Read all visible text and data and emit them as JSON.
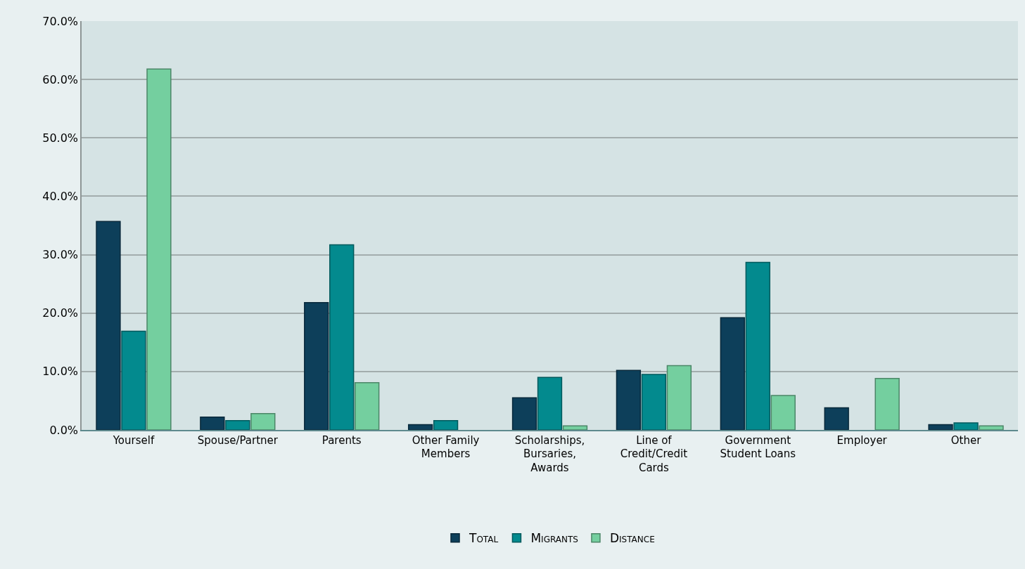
{
  "chart_data": {
    "type": "bar",
    "categories": [
      "Yourself",
      "Spouse/Partner",
      "Parents",
      "Other Family Members",
      "Scholarships, Bursaries, Awards",
      "Line of Credit/Credit Cards",
      "Government Student Loans",
      "Employer",
      "Other"
    ],
    "series": [
      {
        "name": "Total",
        "color": "#0d3f5a",
        "values": [
          35.7,
          2.2,
          21.8,
          0.9,
          5.5,
          10.2,
          19.2,
          3.8,
          0.9
        ]
      },
      {
        "name": "Migrants",
        "color": "#038a8e",
        "values": [
          16.9,
          1.6,
          31.7,
          1.6,
          9.0,
          9.5,
          28.7,
          null,
          1.2
        ]
      },
      {
        "name": "Distance",
        "color": "#74cf9f",
        "values": [
          61.8,
          2.8,
          8.1,
          null,
          0.7,
          11.0,
          5.9,
          8.8,
          0.7
        ]
      }
    ],
    "ylim": [
      0,
      70
    ],
    "yticks": [
      {
        "value": 0,
        "label": "0.0%"
      },
      {
        "value": 10,
        "label": "10.0%"
      },
      {
        "value": 20,
        "label": "20.0%"
      },
      {
        "value": 30,
        "label": "30.0%"
      },
      {
        "value": 40,
        "label": "40.0%"
      },
      {
        "value": 50,
        "label": "50.0%"
      },
      {
        "value": 60,
        "label": "60.0%"
      },
      {
        "value": 70,
        "label": "70.0%"
      }
    ],
    "grid": "y",
    "legend": "bottom"
  }
}
